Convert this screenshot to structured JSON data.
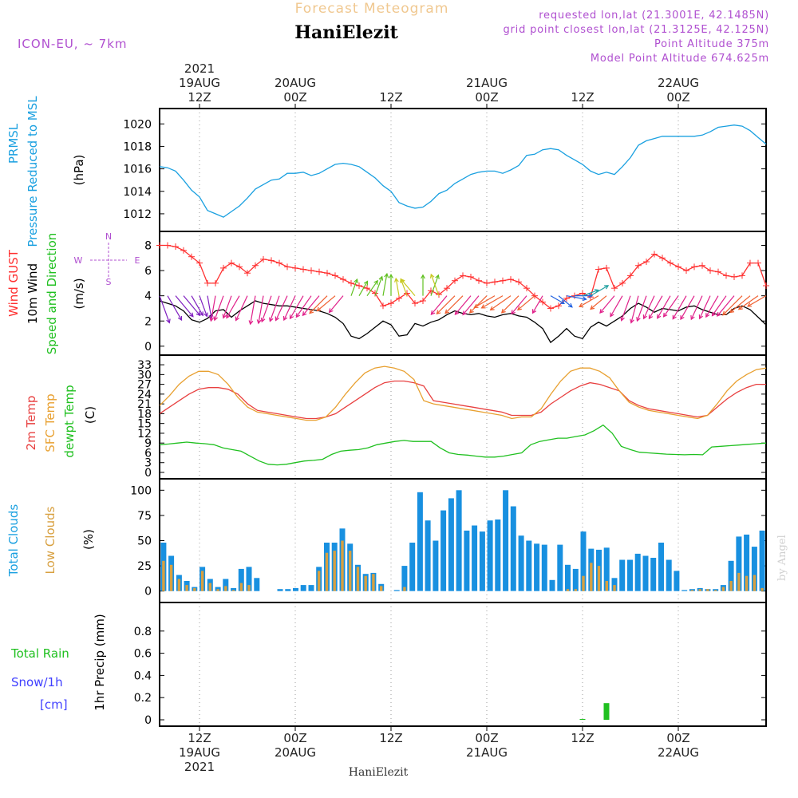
{
  "header": {
    "title": "Forecast Meteogram",
    "location": "HaniElezit",
    "model": "ICON-EU, ~ 7km",
    "requested": "requested lon,lat (21.3001E, 42.1485N)",
    "gridpoint": "grid point closest lon,lat (21.3125E, 42.125N)",
    "point_alt": "Point Altitude 375m",
    "model_alt": "Model Point Altitude 674.625m"
  },
  "footer": {
    "location": "HaniElezit",
    "watermark": "by Angel"
  },
  "colors": {
    "pressure": "#1aa0e0",
    "gust": "#ff3030",
    "wind": "#000000",
    "wind_dir": "#20c020",
    "temp2m": "#e84040",
    "sfc": "#e8a030",
    "dewpt": "#20c020",
    "total_clouds": "#1890e0",
    "low_clouds": "#d8a040",
    "rain": "#20c020",
    "snow": "#4040ff",
    "compass": "#b050d0"
  },
  "chart_data": {
    "type": "meteogram",
    "time_start_hour": 0,
    "time_end_hour": 76,
    "top_axis": [
      {
        "hour": 5,
        "lines": [
          "2021",
          "19AUG",
          "12Z"
        ]
      },
      {
        "hour": 17,
        "lines": [
          "20AUG",
          "00Z"
        ]
      },
      {
        "hour": 29,
        "lines": [
          "12Z"
        ]
      },
      {
        "hour": 41,
        "lines": [
          "21AUG",
          "00Z"
        ]
      },
      {
        "hour": 53,
        "lines": [
          "12Z"
        ]
      },
      {
        "hour": 65,
        "lines": [
          "22AUG",
          "00Z"
        ]
      }
    ],
    "bottom_axis": [
      {
        "hour": 5,
        "lines": [
          "12Z",
          "19AUG",
          "2021"
        ]
      },
      {
        "hour": 17,
        "lines": [
          "00Z",
          "20AUG"
        ]
      },
      {
        "hour": 29,
        "lines": [
          "12Z"
        ]
      },
      {
        "hour": 41,
        "lines": [
          "00Z",
          "21AUG"
        ]
      },
      {
        "hour": 53,
        "lines": [
          "12Z"
        ]
      },
      {
        "hour": 65,
        "lines": [
          "00Z",
          "22AUG"
        ]
      }
    ],
    "panels": [
      {
        "id": "pressure",
        "labels": [
          {
            "text": "PRMSL",
            "color": "#1aa0e0"
          },
          {
            "text": "Pressure Reduced to MSL",
            "color": "#1aa0e0"
          },
          {
            "text": "(hPa)",
            "color": "#000000"
          }
        ],
        "ylim": [
          1011,
          1020.8
        ],
        "yticks": [
          1012,
          1014,
          1016,
          1018,
          1020
        ],
        "series": [
          {
            "name": "PRMSL",
            "color": "#1aa0e0",
            "type": "line",
            "values": [
              1016.2,
              1016.1,
              1015.8,
              1015.0,
              1014.1,
              1013.5,
              1012.3,
              1012.0,
              1011.7,
              1012.2,
              1012.7,
              1013.4,
              1014.2,
              1014.6,
              1015.0,
              1015.1,
              1015.6,
              1015.6,
              1015.7,
              1015.4,
              1015.6,
              1016.0,
              1016.4,
              1016.5,
              1016.4,
              1016.2,
              1015.7,
              1015.2,
              1014.5,
              1014.0,
              1013.0,
              1012.7,
              1012.5,
              1012.6,
              1013.1,
              1013.8,
              1014.1,
              1014.7,
              1015.1,
              1015.5,
              1015.7,
              1015.8,
              1015.8,
              1015.6,
              1015.9,
              1016.3,
              1017.2,
              1017.3,
              1017.7,
              1017.8,
              1017.7,
              1017.2,
              1016.8,
              1016.4,
              1015.8,
              1015.5,
              1015.7,
              1015.5,
              1016.2,
              1017.0,
              1018.1,
              1018.5,
              1018.7,
              1018.9,
              1018.9,
              1018.9,
              1018.9,
              1018.9,
              1019.0,
              1019.3,
              1019.7,
              1019.8,
              1019.9,
              1019.8,
              1019.4,
              1018.8,
              1018.2
            ]
          }
        ]
      },
      {
        "id": "wind",
        "labels": [
          {
            "text": "Wind GUST",
            "color": "#ff3030"
          },
          {
            "text": "10m Wind",
            "color": "#000000"
          },
          {
            "text": "Speed and Direction",
            "color": "#20c020"
          },
          {
            "text": "(m/s)",
            "color": "#000000"
          }
        ],
        "compass": {
          "n": "N",
          "s": "S",
          "w": "W",
          "e": "E"
        },
        "ylim": [
          -0.2,
          8.6
        ],
        "yticks": [
          0,
          2,
          4,
          6,
          8
        ],
        "series": [
          {
            "name": "Wind GUST",
            "color": "#ff3030",
            "type": "line",
            "marker": "cross",
            "values": [
              8.0,
              8.0,
              7.9,
              7.6,
              7.1,
              6.6,
              5.0,
              5.0,
              6.2,
              6.6,
              6.3,
              5.8,
              6.4,
              6.9,
              6.8,
              6.6,
              6.3,
              6.2,
              6.1,
              6.0,
              5.9,
              5.8,
              5.6,
              5.3,
              5.0,
              4.8,
              4.6,
              4.2,
              3.2,
              3.4,
              3.8,
              4.2,
              3.4,
              3.6,
              4.4,
              4.1,
              4.6,
              5.2,
              5.6,
              5.5,
              5.2,
              5.0,
              5.1,
              5.2,
              5.3,
              5.1,
              4.6,
              4.0,
              3.5,
              3.0,
              3.2,
              3.8,
              4.0,
              4.2,
              3.9,
              6.1,
              6.2,
              4.6,
              5.0,
              5.6,
              6.4,
              6.7,
              7.3,
              7.0,
              6.6,
              6.3,
              6.0,
              6.3,
              6.4,
              6.0,
              5.9,
              5.6,
              5.5,
              5.6,
              6.6,
              6.6,
              4.8
            ]
          },
          {
            "name": "10m Wind",
            "color": "#000000",
            "type": "line",
            "values": [
              3.6,
              3.4,
              3.2,
              2.8,
              2.1,
              1.9,
              2.2,
              2.8,
              2.9,
              2.3,
              2.8,
              3.2,
              3.6,
              3.4,
              3.3,
              3.2,
              3.2,
              3.1,
              3.0,
              2.9,
              2.8,
              2.6,
              2.3,
              1.8,
              0.8,
              0.6,
              1.0,
              1.5,
              2.0,
              1.7,
              0.8,
              0.9,
              1.8,
              1.6,
              1.9,
              2.1,
              2.5,
              2.8,
              2.6,
              2.5,
              2.6,
              2.4,
              2.3,
              2.5,
              2.6,
              2.4,
              2.3,
              1.9,
              1.4,
              0.3,
              0.8,
              1.4,
              0.8,
              0.6,
              1.5,
              1.9,
              1.6,
              2.0,
              2.4,
              3.0,
              3.4,
              3.1,
              2.7,
              3.0,
              2.9,
              2.8,
              3.1,
              3.2,
              2.9,
              2.7,
              2.5,
              2.5,
              3.0,
              3.2,
              2.9,
              2.3,
              1.7
            ]
          },
          {
            "name": "Wind direction (deg from)",
            "type": "arrows",
            "values": [
              340,
              330,
              320,
              320,
              330,
              340,
              350,
              10,
              20,
              20,
              30,
              25,
              10,
              10,
              20,
              20,
              25,
              25,
              30,
              35,
              40,
              45,
              50,
              40,
              200,
              210,
              215,
              200,
              190,
              180,
              170,
              160,
              140,
              180,
              200,
              160,
              40,
              45,
              45,
              40,
              40,
              45,
              60,
              60,
              55,
              45,
              40,
              50,
              30,
              300,
              310,
              280,
              270,
              250,
              240,
              60,
              50,
              40,
              30,
              20,
              15,
              20,
              25,
              30,
              30,
              35,
              30,
              30,
              25,
              25,
              30,
              35,
              40,
              45,
              50,
              55,
              60
            ]
          }
        ]
      },
      {
        "id": "temp",
        "labels": [
          {
            "text": "2m Temp",
            "color": "#e84040"
          },
          {
            "text": "SFC Temp",
            "color": "#e8a030"
          },
          {
            "text": "dewpt Temp",
            "color": "#20c020"
          },
          {
            "text": "(C)",
            "color": "#000000"
          }
        ],
        "ylim": [
          0,
          34
        ],
        "yticks": [
          0,
          3,
          6,
          9,
          12,
          15,
          18,
          21,
          24,
          27,
          30,
          33
        ],
        "series": [
          {
            "name": "2m Temp",
            "color": "#e84040",
            "type": "line",
            "values": [
              18.0,
              20.0,
              22.0,
              24.0,
              25.5,
              26.0,
              26.0,
              25.5,
              24.0,
              21.0,
              19.0,
              18.5,
              18.0,
              17.5,
              17.0,
              16.5,
              16.5,
              17.0,
              18.0,
              20.0,
              22.0,
              24.0,
              26.0,
              27.5,
              28.0,
              28.0,
              27.5,
              26.5,
              22.0,
              21.5,
              21.0,
              20.5,
              20.0,
              19.5,
              19.0,
              18.5,
              17.5,
              17.5,
              17.5,
              18.5,
              21.0,
              23.0,
              25.0,
              26.5,
              27.5,
              27.0,
              26.0,
              25.0,
              22.0,
              20.5,
              19.5,
              19.0,
              18.5,
              18.0,
              17.5,
              17.0,
              17.5,
              20.0,
              22.5,
              24.5,
              26.0,
              27.0,
              27.0
            ]
          },
          {
            "name": "SFC Temp",
            "color": "#e8a030",
            "type": "line",
            "values": [
              20.5,
              23.5,
              27.0,
              29.5,
              31.0,
              31.0,
              30.0,
              27.0,
              23.0,
              20.0,
              18.5,
              18.0,
              17.5,
              17.0,
              16.5,
              16.0,
              16.0,
              17.0,
              20.0,
              24.0,
              27.5,
              30.5,
              32.0,
              32.5,
              32.0,
              31.0,
              28.5,
              22.0,
              21.0,
              20.5,
              20.0,
              19.5,
              19.0,
              18.5,
              18.0,
              17.5,
              16.5,
              17.0,
              17.0,
              19.5,
              24.0,
              28.0,
              31.0,
              32.0,
              32.0,
              31.0,
              29.0,
              25.0,
              21.5,
              20.0,
              19.0,
              18.5,
              18.0,
              17.5,
              17.0,
              16.5,
              17.5,
              21.0,
              25.0,
              28.0,
              30.0,
              31.5,
              32.0
            ]
          },
          {
            "name": "dewpt Temp",
            "color": "#20c020",
            "type": "line",
            "values": [
              8.5,
              8.7,
              9.0,
              9.3,
              9.0,
              8.8,
              8.5,
              7.5,
              7.0,
              6.5,
              5.0,
              3.5,
              2.5,
              2.3,
              2.5,
              3.0,
              3.5,
              3.7,
              4.0,
              5.5,
              6.5,
              6.8,
              7.0,
              7.5,
              8.5,
              9.0,
              9.5,
              9.8,
              9.5,
              9.5,
              9.5,
              7.5,
              6.0,
              5.5,
              5.3,
              5.0,
              4.7,
              4.7,
              5.0,
              5.5,
              6.0,
              8.5,
              9.5,
              10.0,
              10.5,
              10.5,
              11.0,
              11.5,
              12.8,
              14.5,
              12.0,
              8.0,
              7.0,
              6.2,
              6.0,
              5.8,
              5.6,
              5.5,
              5.4,
              5.5,
              5.4,
              7.8,
              8.0,
              8.2,
              8.4,
              8.6,
              8.8,
              9.0
            ]
          }
        ]
      },
      {
        "id": "clouds",
        "labels": [
          {
            "text": "Total Clouds",
            "color": "#1aa0e0"
          },
          {
            "text": "Low Clouds",
            "color": "#d8a040"
          },
          {
            "text": "(%)",
            "color": "#000000"
          }
        ],
        "ylim": [
          -5,
          105
        ],
        "yticks": [
          0,
          25,
          50,
          75,
          100
        ],
        "series": [
          {
            "name": "Total Clouds",
            "color": "#1890e0",
            "type": "bar",
            "values": [
              48,
              35,
              16,
              10,
              4,
              24,
              12,
              4,
              12,
              3,
              22,
              24,
              13,
              0,
              0,
              2,
              2,
              3,
              6,
              6,
              24,
              48,
              48,
              62,
              47,
              26,
              17,
              18,
              7,
              0,
              1,
              25,
              48,
              98,
              70,
              50,
              80,
              92,
              100,
              60,
              65,
              59,
              70,
              71,
              100,
              84,
              55,
              50,
              47,
              46,
              11,
              46,
              26,
              22,
              59,
              42,
              41,
              43,
              13,
              31,
              31,
              37,
              35,
              33,
              48,
              31,
              20,
              1,
              2,
              3,
              2,
              2,
              6,
              30,
              54,
              56,
              44,
              60
            ]
          },
          {
            "name": "Low Clouds",
            "color": "#d8a040",
            "type": "bar",
            "values": [
              30,
              26,
              12,
              6,
              3,
              20,
              8,
              2,
              5,
              1,
              8,
              6,
              0,
              0,
              0,
              0,
              0,
              0,
              0,
              0,
              20,
              38,
              40,
              50,
              40,
              24,
              15,
              17,
              5,
              0,
              0,
              4,
              0,
              0,
              0,
              0,
              0,
              0,
              0,
              0,
              0,
              0,
              0,
              0,
              0,
              0,
              0,
              0,
              0,
              0,
              0,
              0,
              2,
              2,
              15,
              28,
              25,
              10,
              6,
              0,
              0,
              0,
              0,
              0,
              0,
              0,
              0,
              0,
              1,
              2,
              2,
              1,
              4,
              10,
              18,
              15,
              16,
              3
            ]
          }
        ]
      },
      {
        "id": "precip",
        "labels": [
          {
            "text": "Total  Rain",
            "color": "#20c020"
          },
          {
            "text": "Snow/1h",
            "color": "#4040ff"
          },
          {
            "text": "[cm]",
            "color": "#4040ff"
          },
          {
            "text": "1hr Precip (mm)",
            "color": "#000000"
          }
        ],
        "ylim": [
          0,
          1.0
        ],
        "yticks": [
          "0",
          "0.2",
          "0.4",
          "0.6",
          "0.8"
        ],
        "series": [
          {
            "name": "Total Rain",
            "color": "#20c020",
            "type": "bar",
            "points": [
              {
                "hour": 53,
                "value": 0.005
              },
              {
                "hour": 56,
                "value": 0.15
              }
            ]
          }
        ]
      }
    ]
  }
}
